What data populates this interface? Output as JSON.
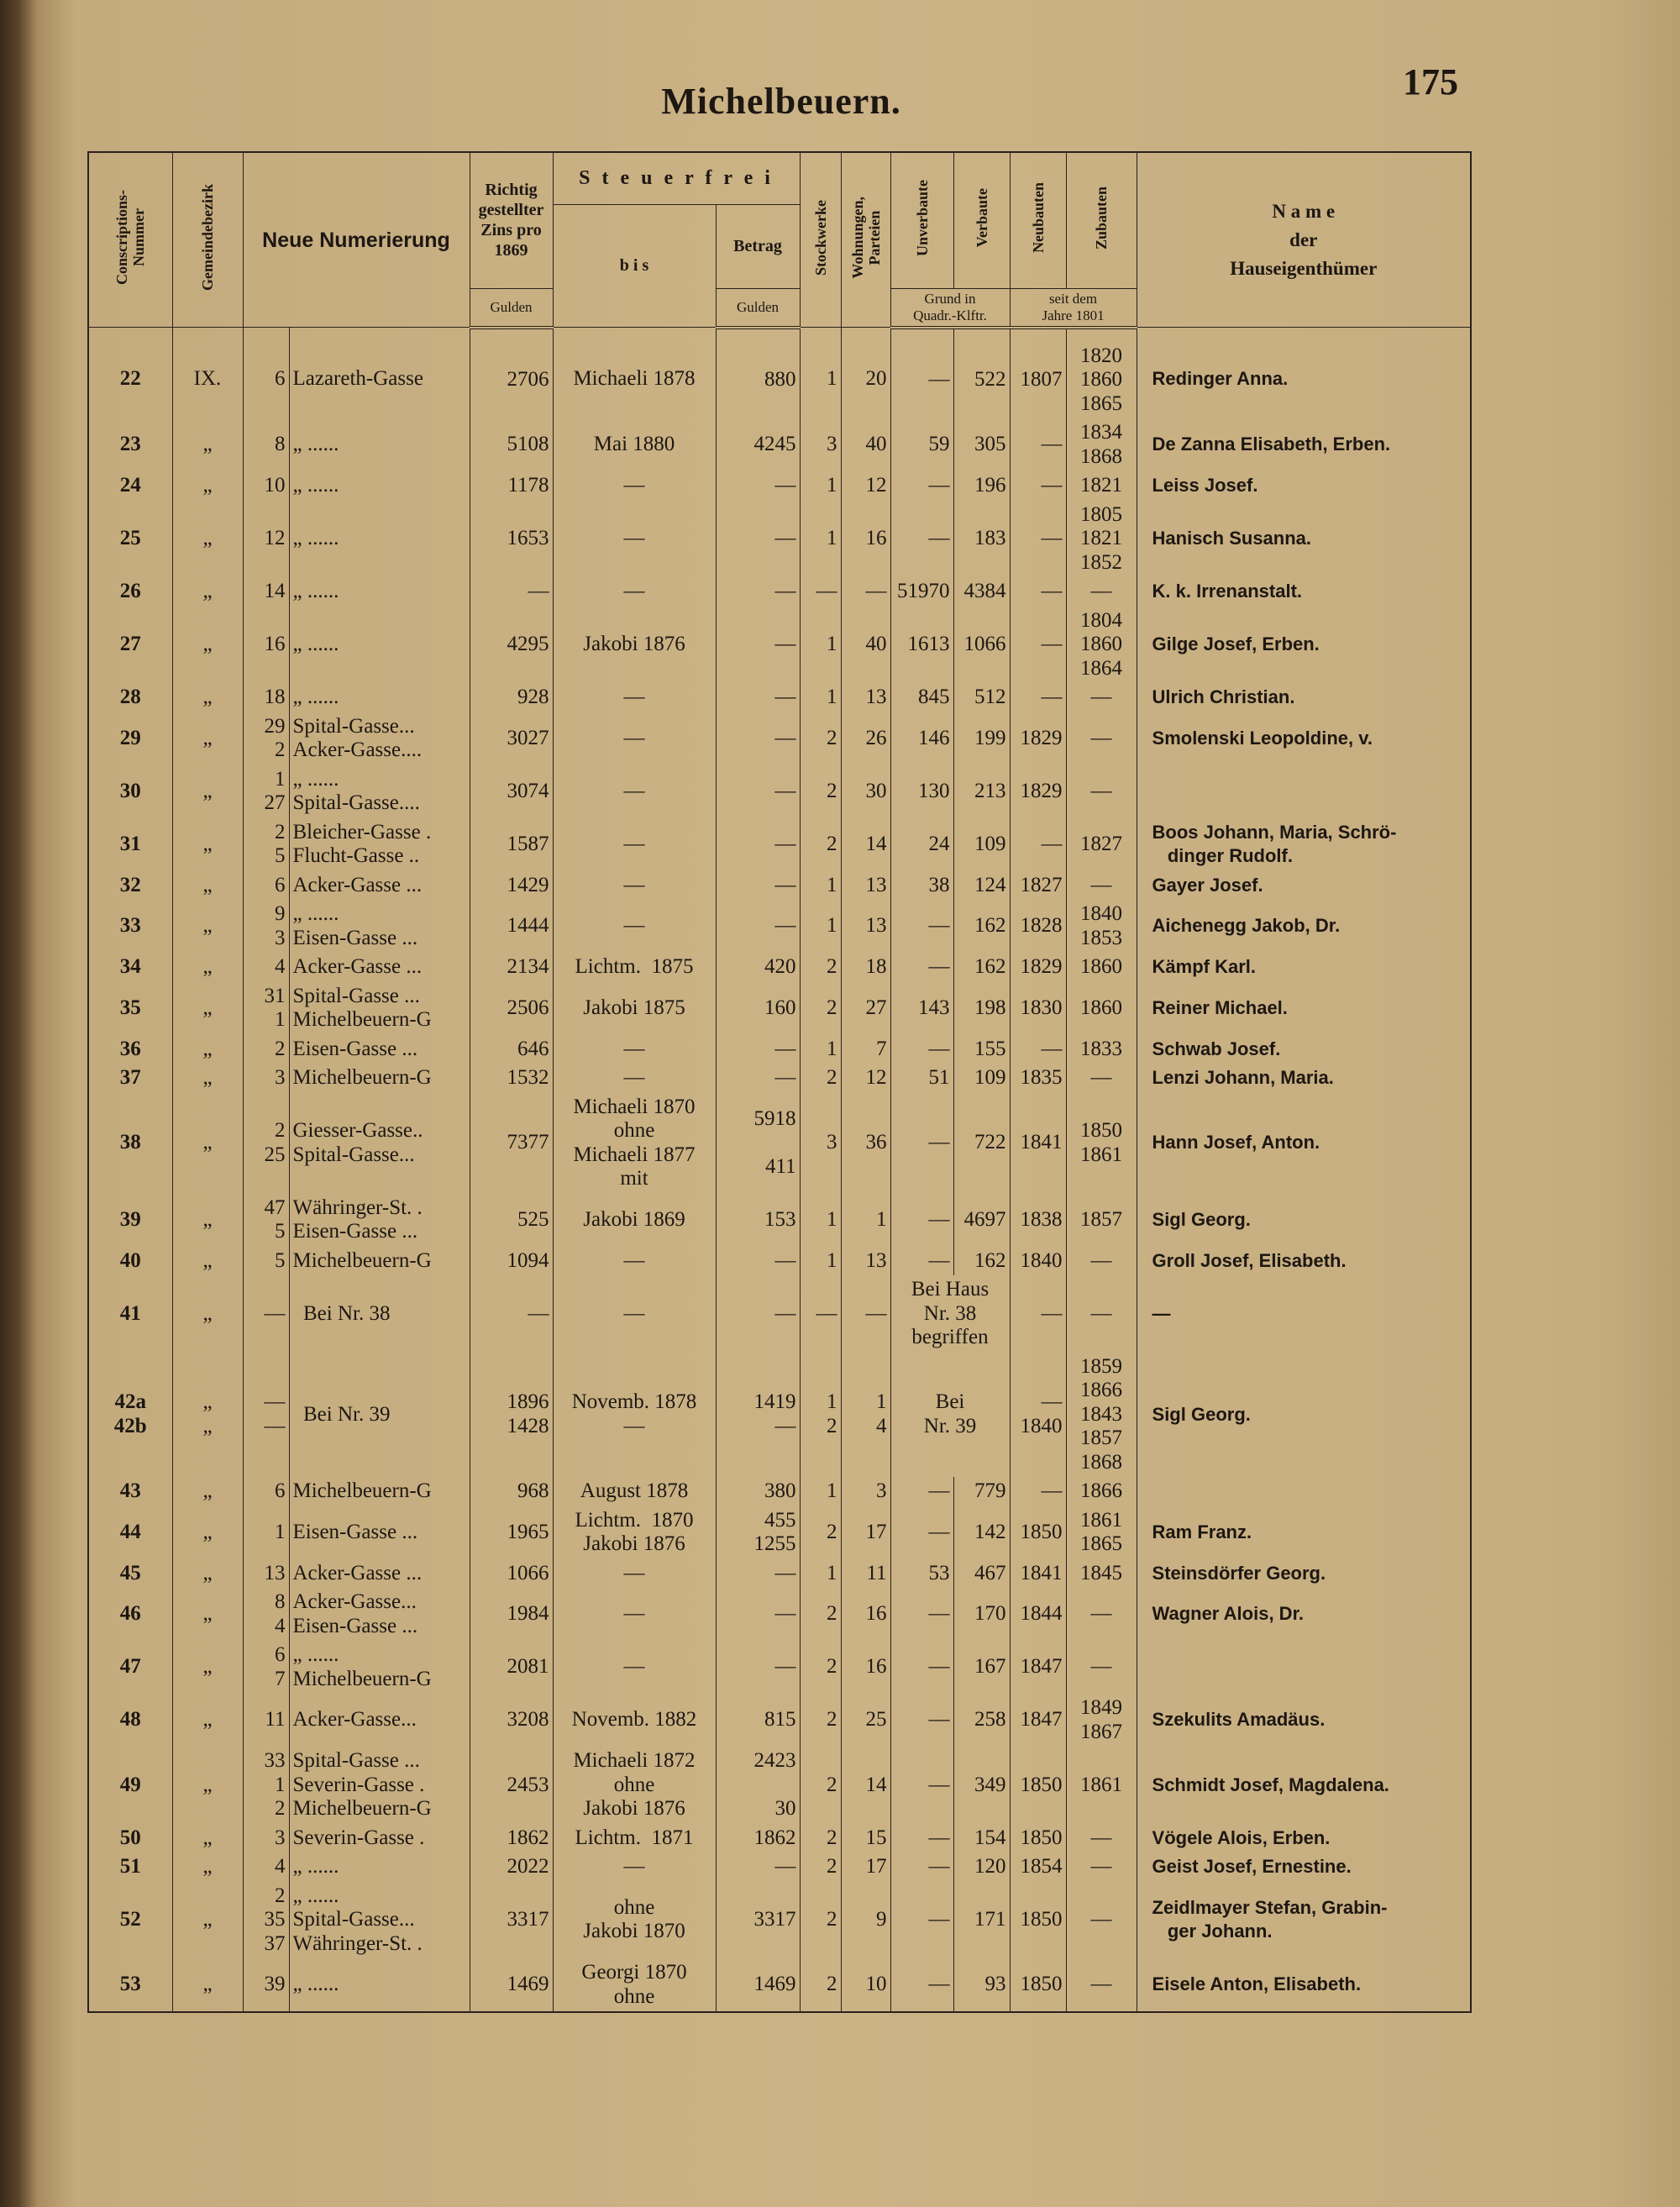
{
  "header": {
    "page_title": "Michelbeuern.",
    "page_number": "175"
  },
  "columns": {
    "conscriptions": "Conscriptions-\nNummer",
    "bezirk": "Gemeindebezirk",
    "numerierung": "Neue Numerierung",
    "zins": "Richtig\ngestellter\nZins pro\n1869",
    "zins_unit": "Gulden",
    "steuerfrei": "S t e u e r f r e i",
    "bis": "b i s",
    "betrag": "Betrag",
    "betrag_unit": "Gulden",
    "stockwerke": "Stockwerke",
    "wohnungen": "Wohnungen,\nParteien",
    "unverbaute": "Unverbaute",
    "verbaute": "Verbaute",
    "grund": "Grund in\nQuadr.-Klftr.",
    "neubauten": "Neubauten",
    "zubauten": "Zubauten",
    "seit": "seit dem\nJahre 1801",
    "name": "N a m e\nder\nHauseigenthümer"
  },
  "rows": [
    {
      "nr": "22",
      "bezirk": "IX.",
      "num": "6",
      "street": "Lazareth-Gasse",
      "zins": "2706",
      "bis": "Michaeli 1878",
      "betrag": "880",
      "stock": "1",
      "wohn": "20",
      "unverb": "—",
      "verb": "522",
      "neu": "1807",
      "zu": "1820\n1860\n1865",
      "name": "Redinger Anna."
    },
    {
      "nr": "23",
      "bezirk": "„",
      "num": "8",
      "street": "„ ......",
      "zins": "5108",
      "bis": "Mai 1880",
      "betrag": "4245",
      "stock": "3",
      "wohn": "40",
      "unverb": "59",
      "verb": "305",
      "neu": "—",
      "zu": "1834\n1868",
      "name": "De Zanna Elisabeth, Erben."
    },
    {
      "nr": "24",
      "bezirk": "„",
      "num": "10",
      "street": "„ ......",
      "zins": "1178",
      "bis": "—",
      "betrag": "—",
      "stock": "1",
      "wohn": "12",
      "unverb": "—",
      "verb": "196",
      "neu": "—",
      "zu": "1821",
      "name": "Leiss Josef."
    },
    {
      "nr": "25",
      "bezirk": "„",
      "num": "12",
      "street": "„ ......",
      "zins": "1653",
      "bis": "—",
      "betrag": "—",
      "stock": "1",
      "wohn": "16",
      "unverb": "—",
      "verb": "183",
      "neu": "—",
      "zu": "1805\n1821\n1852",
      "name": "Hanisch Susanna."
    },
    {
      "nr": "26",
      "bezirk": "„",
      "num": "14",
      "street": "„ ......",
      "zins": "—",
      "bis": "—",
      "betrag": "—",
      "stock": "—",
      "wohn": "—",
      "unverb": "51970",
      "verb": "4384",
      "neu": "—",
      "zu": "—",
      "name": "K. k. Irrenanstalt."
    },
    {
      "nr": "27",
      "bezirk": "„",
      "num": "16",
      "street": "„ ......",
      "zins": "4295",
      "bis": "Jakobi 1876",
      "betrag": "—",
      "stock": "1",
      "wohn": "40",
      "unverb": "1613",
      "verb": "1066",
      "neu": "—",
      "zu": "1804\n1860\n1864",
      "name": "Gilge Josef, Erben."
    },
    {
      "nr": "28",
      "bezirk": "„",
      "num": "18",
      "street": "„ ......",
      "zins": "928",
      "bis": "—",
      "betrag": "—",
      "stock": "1",
      "wohn": "13",
      "unverb": "845",
      "verb": "512",
      "neu": "—",
      "zu": "—",
      "name": "Ulrich Christian."
    },
    {
      "nr": "29",
      "bezirk": "„",
      "num": "29\n2",
      "street": "Spital-Gasse...\nAcker-Gasse....",
      "zins": "3027",
      "bis": "—",
      "betrag": "—",
      "stock": "2",
      "wohn": "26",
      "unverb": "146",
      "verb": "199",
      "neu": "1829",
      "zu": "—",
      "name": "Smolenski Leopoldine, v."
    },
    {
      "nr": "30",
      "bezirk": "„",
      "num": "1\n27",
      "street": "„ ......\nSpital-Gasse....",
      "zins": "3074",
      "bis": "—",
      "betrag": "—",
      "stock": "2",
      "wohn": "30",
      "unverb": "130",
      "verb": "213",
      "neu": "1829",
      "zu": "—"
    },
    {
      "nr": "31",
      "bezirk": "„",
      "num": "2\n5",
      "street": "Bleicher-Gasse .\nFlucht-Gasse ..",
      "zins": "1587",
      "bis": "—",
      "betrag": "—",
      "stock": "2",
      "wohn": "14",
      "unverb": "24",
      "verb": "109",
      "neu": "—",
      "zu": "1827",
      "name": "Boos Johann, Maria, Schrö-\n   dinger Rudolf."
    },
    {
      "nr": "32",
      "bezirk": "„",
      "num": "6",
      "street": "Acker-Gasse ...",
      "zins": "1429",
      "bis": "—",
      "betrag": "—",
      "stock": "1",
      "wohn": "13",
      "unverb": "38",
      "verb": "124",
      "neu": "1827",
      "zu": "—",
      "name": "Gayer Josef."
    },
    {
      "nr": "33",
      "bezirk": "„",
      "num": "9\n3",
      "street": "„ ......\nEisen-Gasse ...",
      "zins": "1444",
      "bis": "—",
      "betrag": "—",
      "stock": "1",
      "wohn": "13",
      "unverb": "—",
      "verb": "162",
      "neu": "1828",
      "zu": "1840\n1853",
      "name": "Aichenegg Jakob, Dr."
    },
    {
      "nr": "34",
      "bezirk": "„",
      "num": "4",
      "street": "Acker-Gasse ...",
      "zins": "2134",
      "bis": "Lichtm.  1875",
      "betrag": "420",
      "stock": "2",
      "wohn": "18",
      "unverb": "—",
      "verb": "162",
      "neu": "1829",
      "zu": "1860",
      "name": "Kämpf Karl."
    },
    {
      "nr": "35",
      "bezirk": "„",
      "num": "31\n1",
      "street": "Spital-Gasse ...\nMichelbeuern-G",
      "zins": "2506",
      "bis": "Jakobi 1875",
      "betrag": "160",
      "stock": "2",
      "wohn": "27",
      "unverb": "143",
      "verb": "198",
      "neu": "1830",
      "zu": "1860",
      "name": "Reiner Michael."
    },
    {
      "nr": "36",
      "bezirk": "„",
      "num": "2",
      "street": "Eisen-Gasse ...",
      "zins": "646",
      "bis": "—",
      "betrag": "—",
      "stock": "1",
      "wohn": "7",
      "unverb": "—",
      "verb": "155",
      "neu": "—",
      "zu": "1833",
      "name": "Schwab Josef."
    },
    {
      "nr": "37",
      "bezirk": "„",
      "num": "3",
      "street": "Michelbeuern-G",
      "zins": "1532",
      "bis": "—",
      "betrag": "—",
      "stock": "2",
      "wohn": "12",
      "unverb": "51",
      "verb": "109",
      "neu": "1835",
      "zu": "—",
      "name": "Lenzi Johann, Maria."
    },
    {
      "nr": "38",
      "bezirk": "„",
      "num": "2\n25",
      "street": "Giesser-Gasse..\nSpital-Gasse...",
      "zins": "7377",
      "bis": "Michaeli 1870\nohne\nMichaeli 1877\nmit",
      "betrag": "5918\n\n411",
      "stock": "3",
      "wohn": "36",
      "unverb": "—",
      "verb": "722",
      "neu": "1841",
      "zu": "1850\n1861",
      "name": "Hann Josef, Anton."
    },
    {
      "nr": "39",
      "bezirk": "„",
      "num": "47\n5",
      "street": "Währinger-St. .\nEisen-Gasse ...",
      "zins": "525",
      "bis": "Jakobi 1869",
      "betrag": "153",
      "stock": "1",
      "wohn": "1",
      "unverb": "—",
      "verb": "4697",
      "neu": "1838",
      "zu": "1857",
      "name": "Sigl Georg."
    },
    {
      "nr": "40",
      "bezirk": "„",
      "num": "5",
      "street": "Michelbeuern-G",
      "zins": "1094",
      "bis": "—",
      "betrag": "—",
      "stock": "1",
      "wohn": "13",
      "unverb": "—",
      "verb": "162",
      "neu": "1840",
      "zu": "—",
      "name": "Groll Josef, Elisabeth."
    },
    {
      "nr": "41",
      "bezirk": "„",
      "num": "—",
      "street": "  Bei Nr. 38",
      "zins": "—",
      "bis": "—",
      "betrag": "—",
      "stock": "—",
      "wohn": "—",
      "unverb": "Bei Haus\nNr. 38\nbegriffen",
      "neu": "—",
      "zu": "—",
      "name": "—"
    },
    {
      "nr": "42a\n42b",
      "bezirk": "„\n„",
      "num": "—\n—",
      "street": "  Bei Nr. 39",
      "zins": "1896\n1428",
      "bis": "Novemb. 1878\n—",
      "betrag": "1419\n—",
      "stock": "1\n2",
      "wohn": "1\n4",
      "unverb": "Bei\nNr. 39",
      "neu": "—\n1840",
      "zu": "1859\n1866\n1843\n1857\n1868",
      "name": "Sigl Georg."
    },
    {
      "nr": "43",
      "bezirk": "„",
      "num": "6",
      "street": "Michelbeuern-G",
      "zins": "968",
      "bis": "August 1878",
      "betrag": "380",
      "stock": "1",
      "wohn": "3",
      "unverb": "—",
      "verb": "779",
      "neu": "—",
      "zu": "1866"
    },
    {
      "nr": "44",
      "bezirk": "„",
      "num": "1",
      "street": "Eisen-Gasse ...",
      "zins": "1965",
      "bis": "Lichtm.  1870\nJakobi 1876",
      "betrag": "455\n1255",
      "stock": "2",
      "wohn": "17",
      "unverb": "—",
      "verb": "142",
      "neu": "1850",
      "zu": "1861\n1865",
      "name": "Ram Franz."
    },
    {
      "nr": "45",
      "bezirk": "„",
      "num": "13",
      "street": "Acker-Gasse ...",
      "zins": "1066",
      "bis": "—",
      "betrag": "—",
      "stock": "1",
      "wohn": "11",
      "unverb": "53",
      "verb": "467",
      "neu": "1841",
      "zu": "1845",
      "name": "Steinsdörfer Georg."
    },
    {
      "nr": "46",
      "bezirk": "„",
      "num": "8\n4",
      "street": "Acker-Gasse...\nEisen-Gasse ...",
      "zins": "1984",
      "bis": "—",
      "betrag": "—",
      "stock": "2",
      "wohn": "16",
      "unverb": "—",
      "verb": "170",
      "neu": "1844",
      "zu": "—",
      "name": "Wagner Alois, Dr."
    },
    {
      "nr": "47",
      "bezirk": "„",
      "num": "6\n7",
      "street": "„ ......\nMichelbeuern-G",
      "zins": "2081",
      "bis": "—",
      "betrag": "—",
      "stock": "2",
      "wohn": "16",
      "unverb": "—",
      "verb": "167",
      "neu": "1847",
      "zu": "—"
    },
    {
      "nr": "48",
      "bezirk": "„",
      "num": "11",
      "street": "Acker-Gasse...",
      "zins": "3208",
      "bis": "Novemb. 1882",
      "betrag": "815",
      "stock": "2",
      "wohn": "25",
      "unverb": "—",
      "verb": "258",
      "neu": "1847",
      "zu": "1849\n1867",
      "name": "Szekulits Amadäus."
    },
    {
      "nr": "49",
      "bezirk": "„",
      "num": "33\n1\n2",
      "street": "Spital-Gasse ...\nSeverin-Gasse .\nMichelbeuern-G",
      "zins": "2453",
      "bis": "Michaeli 1872\nohne\nJakobi 1876",
      "betrag": "2423\n\n30",
      "stock": "2",
      "wohn": "14",
      "unverb": "—",
      "verb": "349",
      "neu": "1850",
      "zu": "1861",
      "name": "Schmidt Josef, Magdalena."
    },
    {
      "nr": "50",
      "bezirk": "„",
      "num": "3",
      "street": "Severin-Gasse .",
      "zins": "1862",
      "bis": "Lichtm.  1871",
      "betrag": "1862",
      "stock": "2",
      "wohn": "15",
      "unverb": "—",
      "verb": "154",
      "neu": "1850",
      "zu": "—",
      "name": "Vögele Alois, Erben."
    },
    {
      "nr": "51",
      "bezirk": "„",
      "num": "4",
      "street": "„ ......",
      "zins": "2022",
      "bis": "—",
      "betrag": "—",
      "stock": "2",
      "wohn": "17",
      "unverb": "—",
      "verb": "120",
      "neu": "1854",
      "zu": "—",
      "name": "Geist Josef, Ernestine."
    },
    {
      "nr": "52",
      "bezirk": "„",
      "num": "2\n35\n37",
      "street": "„ ......\nSpital-Gasse...\nWähringer-St. .",
      "zins": "3317",
      "bis": "ohne\nJakobi 1870",
      "betrag": "3317",
      "stock": "2",
      "wohn": "9",
      "unverb": "—",
      "verb": "171",
      "neu": "1850",
      "zu": "—",
      "name": "Zeidlmayer Stefan, Grabin-\n   ger Johann."
    },
    {
      "nr": "53",
      "bezirk": "„",
      "num": "39",
      "street": "„ ......",
      "zins": "1469",
      "bis": "Georgi 1870\nohne",
      "betrag": "1469",
      "stock": "2",
      "wohn": "10",
      "unverb": "—",
      "verb": "93",
      "neu": "1850",
      "zu": "—",
      "name": "Eisele Anton, Elisabeth."
    }
  ]
}
